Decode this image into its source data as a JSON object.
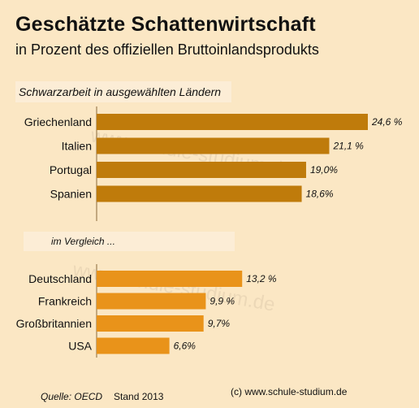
{
  "title": "Geschätzte Schattenwirtschaft",
  "subtitle": "in Prozent des offiziellen Bruttoinlandsprodukts",
  "section1_label": "Schwarzarbeit in ausgewählten Ländern",
  "section2_label": "im Vergleich ...",
  "source": "Quelle: OECD",
  "stand": "Stand 2013",
  "copyright": "(c) www.schule-studium.de",
  "watermark": "www.schule-studium.de",
  "colors": {
    "group1_bar": "#bf7b0b",
    "group2_bar": "#e9931a",
    "axis": "#8a6a3a"
  },
  "chart_data": [
    {
      "type": "bar",
      "orientation": "horizontal",
      "title": "Schwarzarbeit in ausgewählten Ländern",
      "categories": [
        "Griechenland",
        "Italien",
        "Portugal",
        "Spanien"
      ],
      "values": [
        24.6,
        21.1,
        19.0,
        18.6
      ],
      "value_labels": [
        "24,6 %",
        "21,1 %",
        "19,0%",
        "18,6%"
      ]
    },
    {
      "type": "bar",
      "orientation": "horizontal",
      "title": "im Vergleich ...",
      "categories": [
        "Deutschland",
        "Frankreich",
        "Großbritannien",
        "USA"
      ],
      "values": [
        13.2,
        9.9,
        9.7,
        6.6
      ],
      "value_labels": [
        "13,2 %",
        "9,9 %",
        "9,7%",
        "6,6%"
      ]
    }
  ]
}
